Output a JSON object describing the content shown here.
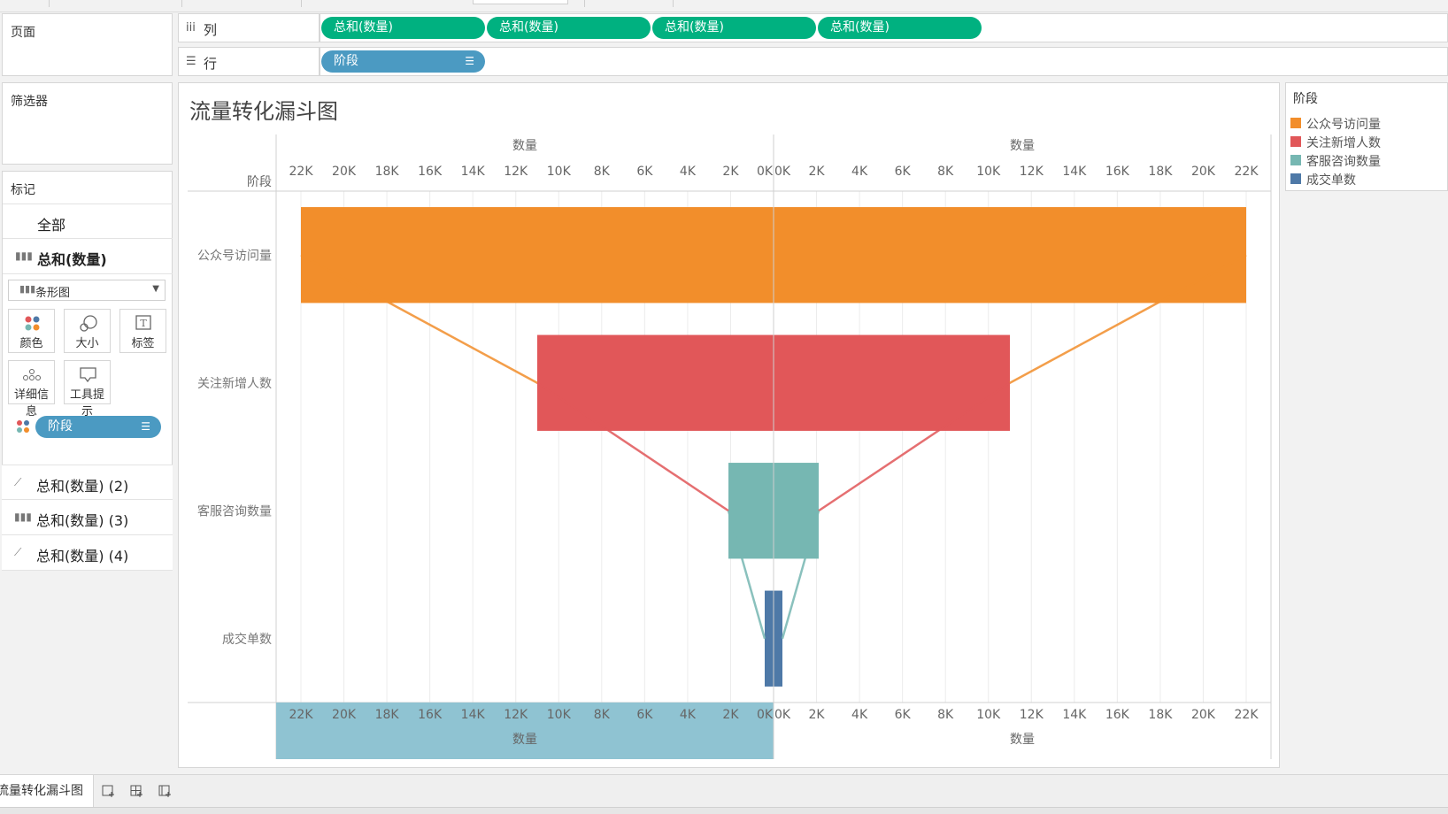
{
  "shelves": {
    "pages_label": "页面",
    "filters_label": "筛选器",
    "columns_label": "列",
    "rows_label": "行",
    "column_pills": [
      "总和(数量)",
      "总和(数量)",
      "总和(数量)",
      "总和(数量)"
    ],
    "row_pill": "阶段"
  },
  "marks": {
    "title": "标记",
    "all": "全部",
    "active": "总和(数量)",
    "mark_type": "条形图",
    "buttons": {
      "color": "颜色",
      "size": "大小",
      "label": "标签",
      "detail": "详细信息",
      "tooltip": "工具提示"
    },
    "field_pill": "阶段",
    "cards": [
      "总和(数量) (2)",
      "总和(数量) (3)",
      "总和(数量) (4)"
    ]
  },
  "chart_data": {
    "type": "bar",
    "title": "流量转化漏斗图",
    "row_header": "阶段",
    "axis_label": "数量",
    "tick_labels": [
      "22K",
      "20K",
      "18K",
      "16K",
      "14K",
      "12K",
      "10K",
      "8K",
      "6K",
      "4K",
      "2K",
      "0K"
    ],
    "tick_labels_right": [
      "0K",
      "2K",
      "4K",
      "6K",
      "8K",
      "10K",
      "12K",
      "14K",
      "16K",
      "18K",
      "20K",
      "22K"
    ],
    "xlim": [
      0,
      22000
    ],
    "categories": [
      "公众号访问量",
      "关注新增人数",
      "客服咨询数量",
      "成交单数"
    ],
    "values": [
      22000,
      11000,
      2100,
      400
    ],
    "colors": [
      "#f28e2b",
      "#e15759",
      "#76b7b2",
      "#4e79a7"
    ],
    "mirrored": true,
    "grid": true
  },
  "legend": {
    "title": "阶段",
    "items": [
      {
        "label": "公众号访问量",
        "color": "#f28e2b"
      },
      {
        "label": "关注新增人数",
        "color": "#e15759"
      },
      {
        "label": "客服咨询数量",
        "color": "#76b7b2"
      },
      {
        "label": "成交单数",
        "color": "#4e79a7"
      }
    ]
  },
  "sheet": {
    "tab_label": "流量转化漏斗图"
  }
}
